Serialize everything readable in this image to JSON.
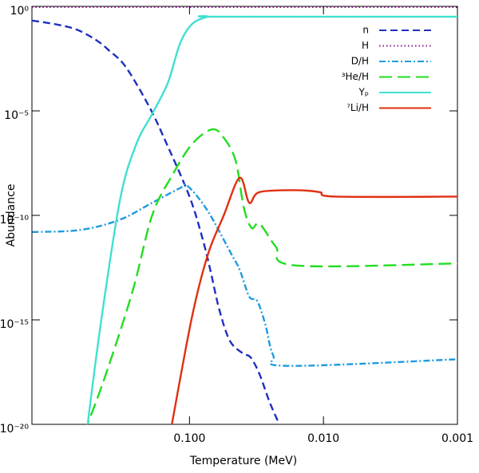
{
  "chart_data": {
    "type": "line",
    "xlabel": "Temperature  (MeV)",
    "ylabel": "Abundance",
    "xscale": "log",
    "yscale": "log",
    "xlim": [
      1.5,
      0.001
    ],
    "ylim": [
      1e-20,
      1
    ],
    "xticks": [
      {
        "value": 0.1,
        "label": "0.100"
      },
      {
        "value": 0.01,
        "label": "0.010"
      },
      {
        "value": 0.001,
        "label": "0.001"
      }
    ],
    "yticks": [
      {
        "value": 1,
        "label": "10⁰"
      },
      {
        "value": 1e-05,
        "label": "10⁻⁵"
      },
      {
        "value": 1e-10,
        "label": "10⁻¹⁰"
      },
      {
        "value": 1e-15,
        "label": "10⁻¹⁵"
      },
      {
        "value": 1e-20,
        "label": "10⁻²⁰"
      }
    ],
    "legend": "upper right",
    "series": [
      {
        "name": "n",
        "color": "#1f2fbf",
        "dash": "dashed",
        "x": [
          1.5,
          1,
          0.7,
          0.5,
          0.4,
          0.3,
          0.2,
          0.15,
          0.1,
          0.08,
          0.07,
          0.06,
          0.05,
          0.04,
          0.035,
          0.03,
          0.025,
          0.02
        ],
        "values": [
          0.21,
          0.14,
          0.079,
          0.025,
          0.0079,
          0.0013,
          1.6e-05,
          3.2e-07,
          7.9e-10,
          7.9e-12,
          2.5e-13,
          3.2e-15,
          1e-16,
          2.5e-17,
          1.6e-17,
          2.5e-18,
          1e-19,
          4e-21
        ]
      },
      {
        "name": "H",
        "color": "#8b1a8b",
        "dash": "dotted",
        "x": [
          1.5,
          0.001
        ],
        "values": [
          0.93,
          0.93
        ]
      },
      {
        "name": "D/H",
        "color": "#1e9be0",
        "dash": "dashdot",
        "x": [
          1.49,
          0.654,
          0.329,
          0.19,
          0.118,
          0.103,
          0.073,
          0.0484,
          0.0422,
          0.0358,
          0.0312,
          0.0272,
          0.0237,
          0.0185,
          0.001
        ],
        "values": [
          1.6e-11,
          2e-11,
          6.3e-11,
          4e-10,
          2e-09,
          2.5e-09,
          1.6e-10,
          1.3e-12,
          2.5e-13,
          1.3e-14,
          7.9e-15,
          6.3e-16,
          2e-17,
          6.3e-18,
          1.3e-17
        ]
      },
      {
        "name": "³He/H",
        "color": "#22dd22",
        "dash": "longdash",
        "x": [
          0.61,
          0.431,
          0.268,
          0.19,
          0.135,
          0.096,
          0.068,
          0.0553,
          0.0452,
          0.0394,
          0.0344,
          0.03,
          0.0227,
          0.0161,
          0.001
        ],
        "values": [
          4e-21,
          1.6e-18,
          2e-14,
          1e-10,
          7.9e-09,
          2.5e-07,
          1.3e-06,
          5e-07,
          4e-08,
          2.5e-10,
          2.5e-11,
          4e-11,
          3.2e-12,
          4e-13,
          5e-13
        ]
      },
      {
        "name": "Yₚ",
        "color": "#40e0d0",
        "dash": "solid",
        "x": [
          0.586,
          0.46,
          0.33,
          0.25,
          0.19,
          0.145,
          0.118,
          0.096,
          0.073,
          0.06,
          0.001
        ],
        "values": [
          4e-21,
          6.3e-16,
          5.6e-10,
          2.5e-07,
          7.1e-06,
          0.00022,
          0.016,
          0.14,
          0.32,
          0.32,
          0.32
        ]
      },
      {
        "name": "⁷Li/H",
        "color": "#e03010",
        "dash": "solid",
        "x": [
          0.139,
          0.096,
          0.073,
          0.0555,
          0.0422,
          0.0358,
          0.03,
          0.0161,
          0.0107,
          0.0081,
          0.001
        ],
        "values": [
          4e-21,
          1.3e-15,
          1.3e-12,
          1e-10,
          6.3e-09,
          4e-10,
          1.3e-09,
          1.6e-09,
          1.3e-09,
          7.9e-10,
          7.9e-10
        ]
      }
    ]
  }
}
